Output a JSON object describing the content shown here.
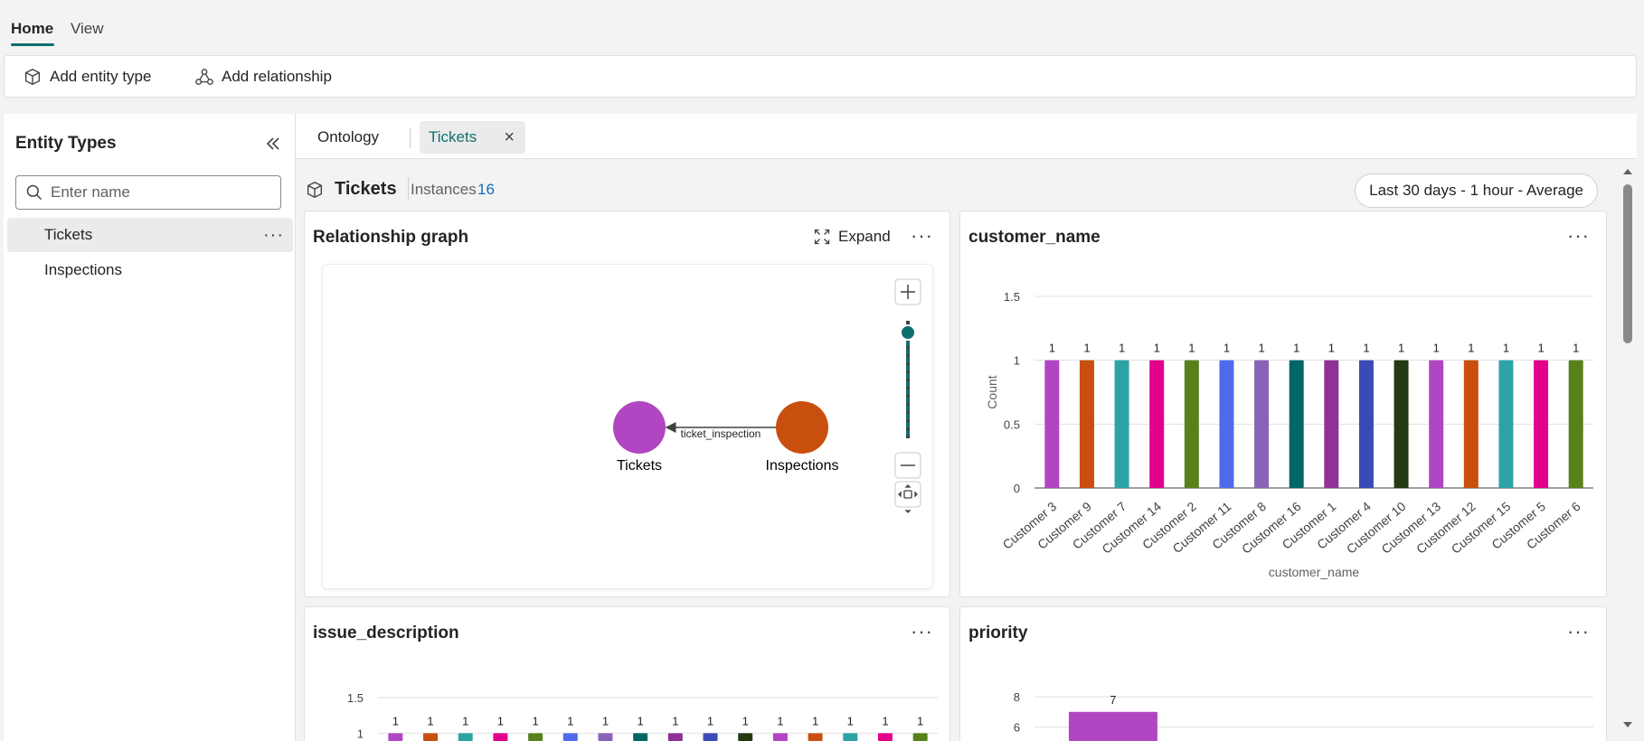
{
  "top_tabs": [
    {
      "label": "Home"
    },
    {
      "label": "View"
    }
  ],
  "toolbar": {
    "add_entity_label": "Add entity type",
    "add_relationship_label": "Add relationship"
  },
  "sidebar": {
    "title": "Entity Types",
    "search_placeholder": "Enter name",
    "items": [
      {
        "label": "Tickets",
        "more": "···"
      },
      {
        "label": "Inspections"
      }
    ]
  },
  "tabs": [
    {
      "label": "Ontology"
    },
    {
      "label": "Tickets",
      "close": "×"
    }
  ],
  "header": {
    "entity": "Tickets",
    "instances_label": "Instances",
    "instances_count": "16",
    "time_filter": "Last 30 days - 1 hour - Average"
  },
  "graph_card": {
    "title": "Relationship graph",
    "expand_label": "Expand",
    "more": "···",
    "nodes": [
      {
        "label": "Tickets",
        "color": "#b146c2"
      },
      {
        "label": "Inspections",
        "color": "#c94f0f"
      }
    ],
    "edge_label": "ticket_inspection",
    "zoom_level": 0.9
  },
  "colors": [
    "#b146c2",
    "#c94f0f",
    "#2ea3a5",
    "#e3008c",
    "#57811b",
    "#4f6bed",
    "#8764b8",
    "#006666",
    "#8f3297",
    "#3b4bb5",
    "#243a10",
    "#b146c2",
    "#c94f0f",
    "#2ea3a5",
    "#e3008c",
    "#57811b"
  ],
  "chart_data": [
    {
      "type": "bar",
      "title": "customer_name",
      "xlabel": "customer_name",
      "ylabel": "Count",
      "ylim": [
        0,
        1.5
      ],
      "yticks": [
        "1.5",
        "1",
        "0.5",
        "0"
      ],
      "categories": [
        "Customer 3",
        "Customer 9",
        "Customer 7",
        "Customer 14",
        "Customer 2",
        "Customer 11",
        "Customer 8",
        "Customer 16",
        "Customer 1",
        "Customer 4",
        "Customer 10",
        "Customer 13",
        "Customer 12",
        "Customer 15",
        "Customer 5",
        "Customer 6"
      ],
      "values": [
        1,
        1,
        1,
        1,
        1,
        1,
        1,
        1,
        1,
        1,
        1,
        1,
        1,
        1,
        1,
        1
      ],
      "data_labels": [
        "1",
        "1",
        "1",
        "1",
        "1",
        "1",
        "1",
        "1",
        "1",
        "1",
        "1",
        "1",
        "1",
        "1",
        "1",
        "1"
      ]
    },
    {
      "type": "bar",
      "title": "issue_description",
      "ylim": [
        0,
        1.5
      ],
      "yticks": [
        "1.5",
        "1"
      ],
      "values": [
        1,
        1,
        1,
        1,
        1,
        1,
        1,
        1,
        1,
        1,
        1,
        1,
        1,
        1,
        1,
        1
      ],
      "data_labels": [
        "1",
        "1",
        "1",
        "1",
        "1",
        "1",
        "1",
        "1",
        "1",
        "1",
        "1",
        "1",
        "1",
        "1",
        "1",
        "1"
      ]
    },
    {
      "type": "bar",
      "title": "priority",
      "ylim": [
        0,
        8
      ],
      "yticks": [
        "8",
        "6"
      ],
      "values": [
        7
      ],
      "data_labels": [
        "7"
      ]
    }
  ]
}
